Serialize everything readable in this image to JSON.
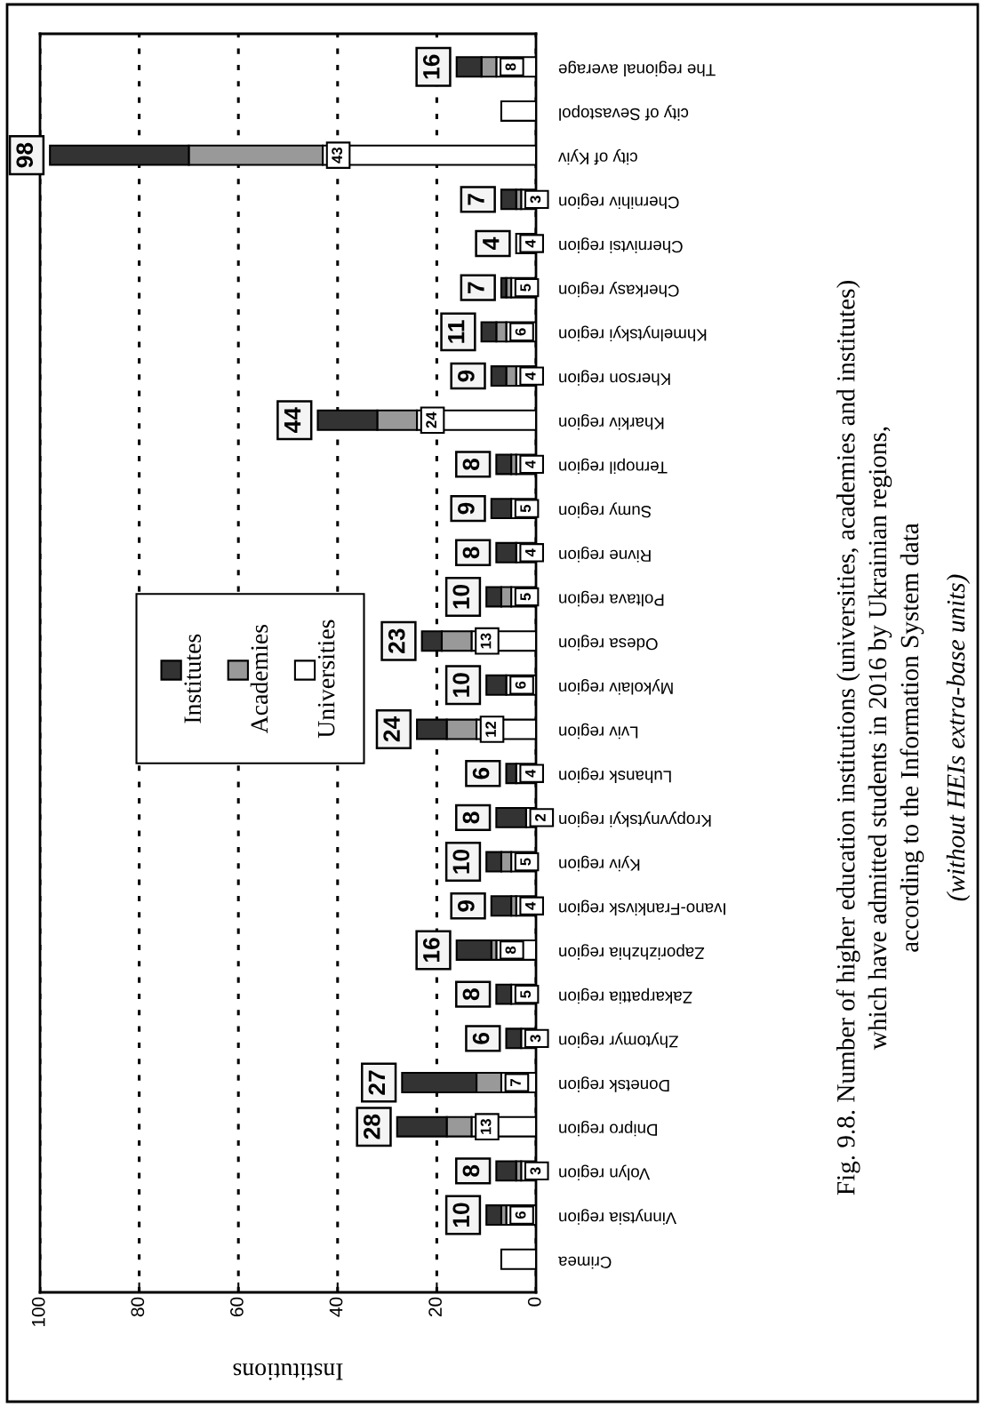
{
  "chart_data": {
    "type": "bar",
    "orientation": "horizontal",
    "stacked": true,
    "title": "Fig. 9.8. Number of higher education institutions (universities, academies and institutes)\nwhich have admitted students in 2016 by Ukrainian regions,\naccording to the Information System data",
    "subtitle": "(without HEIs extra-base units)",
    "xlabel": "Institutions",
    "categories": [
      "The regional average",
      "city of Sevastopol",
      "city of Kyiv",
      "Chernihiv region",
      "Chernivtsi region",
      "Cherkasy region",
      "Khmelnytskyi region",
      "Kherson region",
      "Kharkiv region",
      "Ternopil region",
      "Sumy region",
      "Rivne region",
      "Poltava region",
      "Odesa region",
      "Mykolaiv region",
      "Lviv region",
      "Luhansk region",
      "Kropyvnytskyi region",
      "Kyiv region",
      "Ivano-Frankivsk region",
      "Zaporizhzhia region",
      "Zakarpattia region",
      "Zhytomyr region",
      "Donetsk region",
      "Dnipro region",
      "Volyn region",
      "Vinnytsia region",
      "Crimea"
    ],
    "series": [
      {
        "name": "Universities",
        "color": "#ffffff",
        "values": [
          8,
          7,
          43,
          3,
          4,
          5,
          6,
          4,
          24,
          4,
          5,
          4,
          5,
          13,
          6,
          12,
          4,
          2,
          5,
          4,
          8,
          5,
          3,
          7,
          13,
          3,
          6,
          7
        ],
        "value_labels": [
          "8",
          null,
          "43",
          "3",
          "4",
          "5",
          "6",
          "4",
          "24",
          "4",
          "5",
          "4",
          "5",
          "13",
          "6",
          "12",
          "4",
          "2",
          "5",
          "4",
          "8",
          "5",
          "3",
          "7",
          "13",
          "3",
          "6",
          null
        ]
      },
      {
        "name": "Academies",
        "color": "#999999",
        "values": [
          3,
          0,
          27,
          1,
          0,
          1,
          2,
          2,
          8,
          1,
          0,
          0,
          2,
          6,
          0,
          6,
          0,
          0,
          2,
          1,
          1,
          0,
          0,
          5,
          5,
          1,
          1,
          0
        ]
      },
      {
        "name": "Institutes",
        "color": "#333333",
        "values": [
          5,
          0,
          28,
          3,
          0,
          1,
          3,
          3,
          12,
          3,
          4,
          4,
          3,
          4,
          4,
          6,
          2,
          6,
          3,
          4,
          7,
          3,
          3,
          15,
          10,
          4,
          3,
          0
        ]
      }
    ],
    "totals": [
      "16",
      null,
      "98",
      "7",
      "4",
      "7",
      "11",
      "9",
      "44",
      "8",
      "9",
      "8",
      "10",
      "23",
      "10",
      "24",
      "6",
      "8",
      "10",
      "9",
      "16",
      "8",
      "6",
      "27",
      "28",
      "8",
      "10",
      null
    ],
    "xlim": [
      100,
      0
    ],
    "xticks": [
      0,
      20,
      40,
      60,
      80,
      100
    ],
    "grid": "x",
    "legend": "left"
  }
}
